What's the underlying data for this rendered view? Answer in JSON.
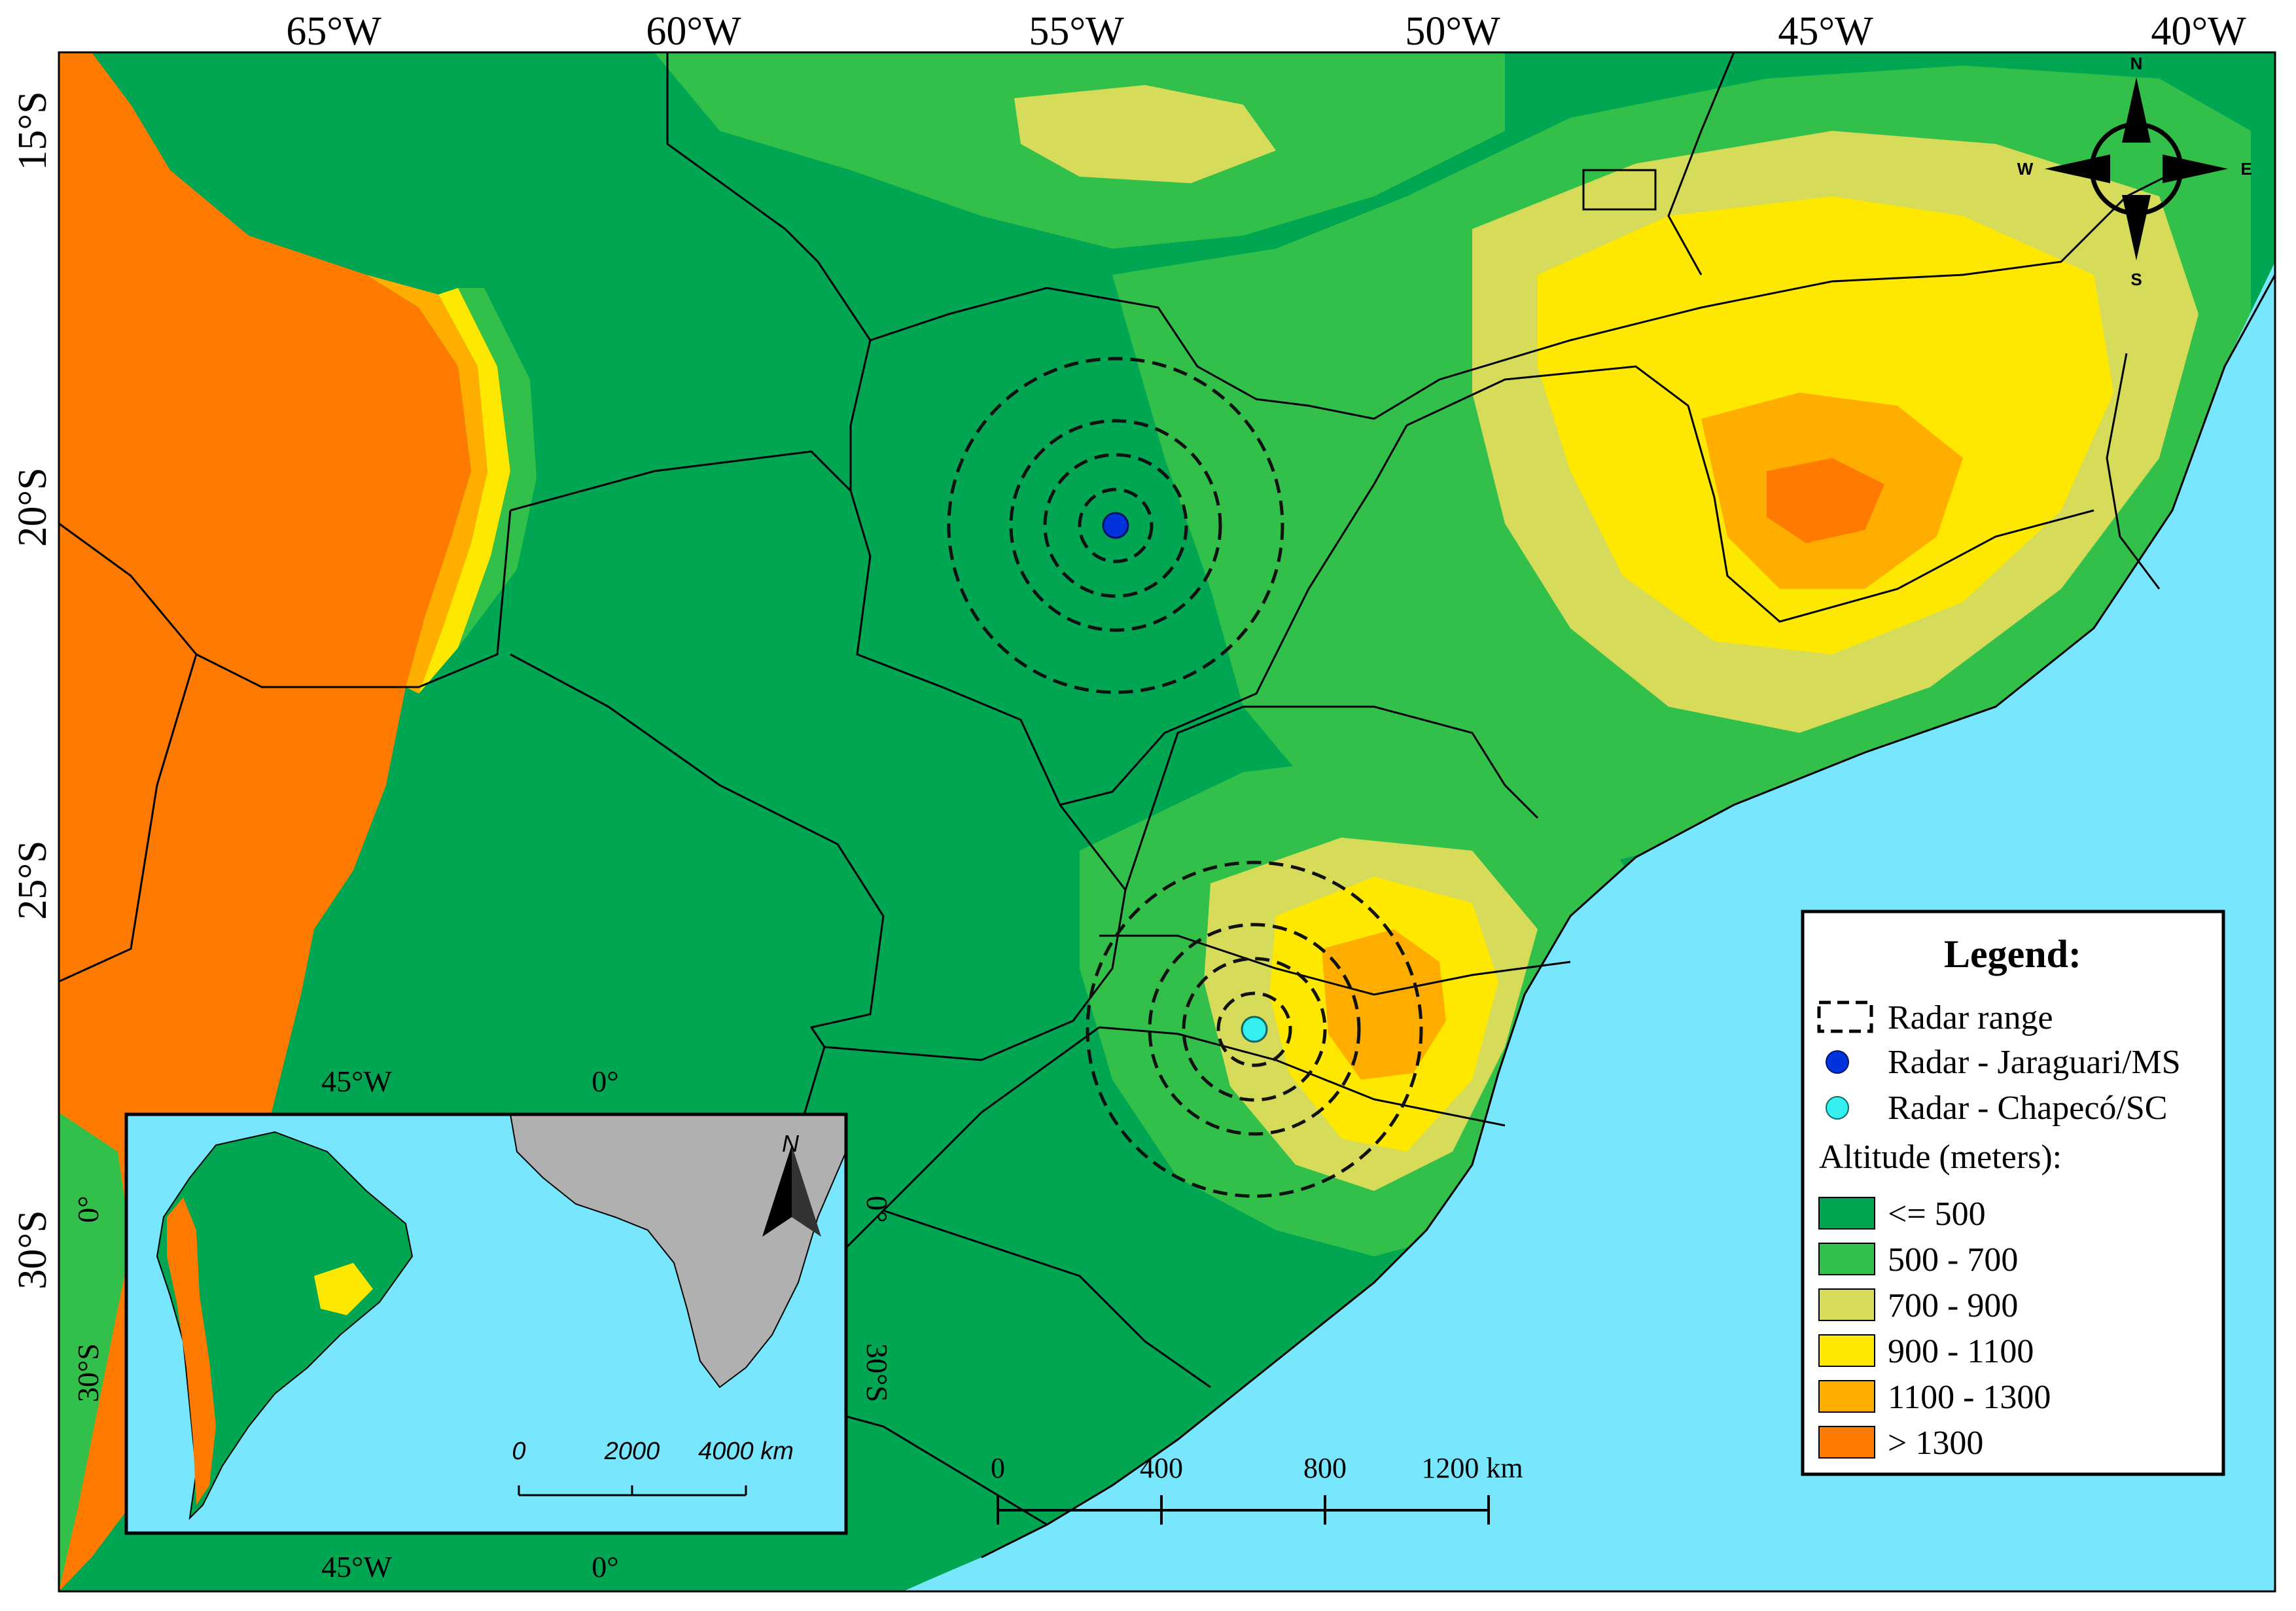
{
  "colors": {
    "ocean": "#78e6fc",
    "low": "#00a651",
    "c500_700": "#33c04a",
    "c700_900": "#d6dc5a",
    "c900_1100": "#ffe800",
    "c1100_1300": "#ffae00",
    "c1300plus": "#ff7a00",
    "africa": "#b0b0b0",
    "radar_jaraguari": "#0033dd",
    "radar_chapeco": "#33f0ee"
  },
  "graticule": {
    "top_lon": [
      "65°W",
      "60°W",
      "55°W",
      "50°W",
      "45°W",
      "40°W"
    ],
    "left_lat": [
      "15°S",
      "20°S",
      "25°S",
      "30°S"
    ]
  },
  "inset": {
    "top_lon": [
      "45°W",
      "0°"
    ],
    "bottom_lon": [
      "45°W",
      "0°"
    ],
    "left_lat": [
      "0°",
      "30°S"
    ],
    "right_lat": [
      "0°",
      "30°S"
    ],
    "north_label": "N",
    "scale_labels": [
      "0",
      "2000",
      "4000 km"
    ]
  },
  "scale_bar": {
    "labels": [
      "0",
      "400",
      "800",
      "1200 km"
    ]
  },
  "compass": {
    "n": "N",
    "s": "S",
    "e": "E",
    "w": "W"
  },
  "legend": {
    "title": "Legend:",
    "radar_range": "Radar range",
    "radar_1": "Radar - Jaraguari/MS",
    "radar_2": "Radar - Chapecó/SC",
    "altitude_title": "Altitude (meters):",
    "classes": [
      "<= 500",
      "500 - 700",
      "700 - 900",
      "900 - 1100",
      "1100 - 1300",
      "> 1300"
    ]
  }
}
